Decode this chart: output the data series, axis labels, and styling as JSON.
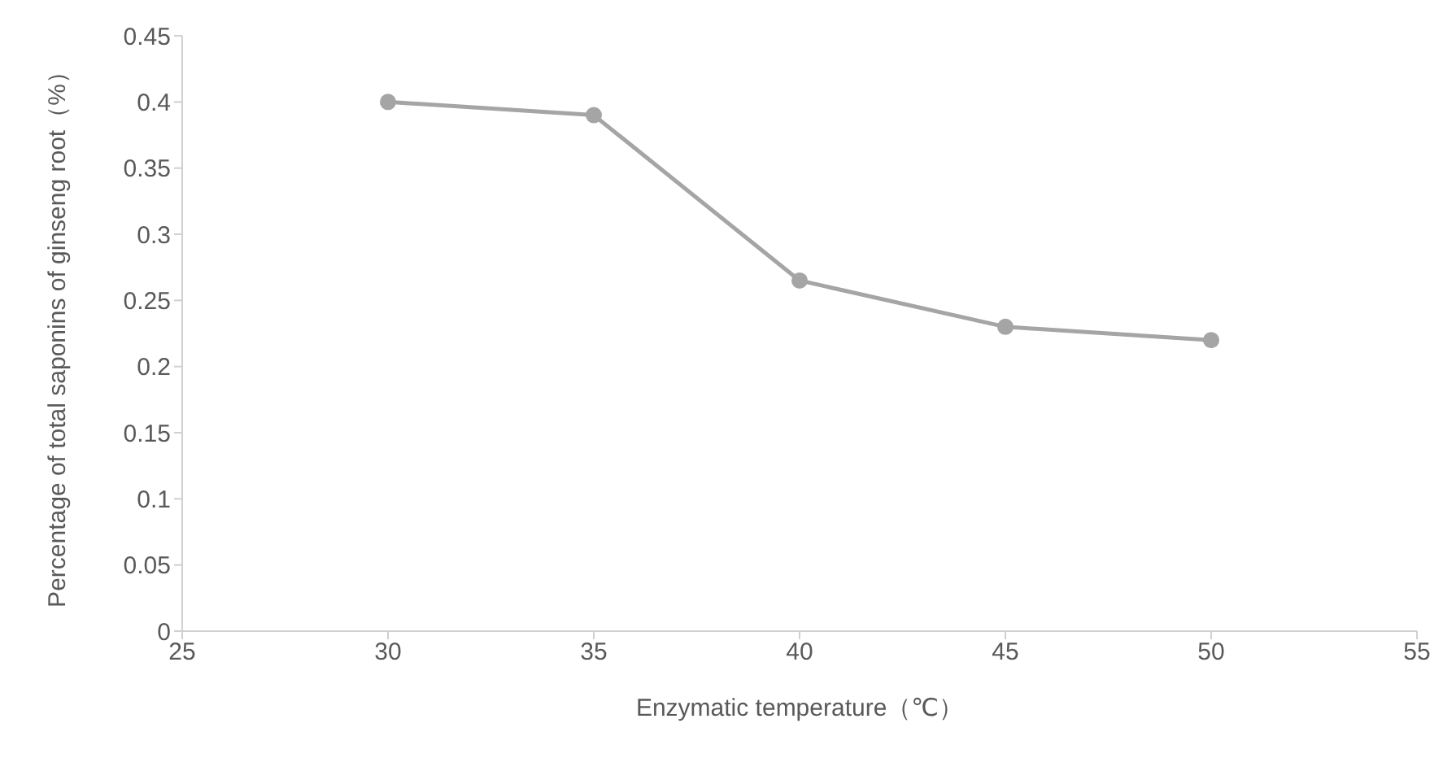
{
  "chart_data": {
    "type": "line",
    "xlabel": "Enzymatic temperature（℃）",
    "ylabel": "Percentage of total saponins of ginseng root（%）",
    "x": [
      30,
      35,
      40,
      45,
      50
    ],
    "series": [
      {
        "color": "#a5a5a5",
        "values": [
          0.4,
          0.39,
          0.265,
          0.23,
          0.22
        ]
      }
    ],
    "xlim": [
      25,
      55
    ],
    "xticks": [
      25,
      30,
      35,
      40,
      45,
      50,
      55
    ],
    "ylim": [
      0,
      0.45
    ],
    "yticks": [
      0,
      0.05,
      0.1,
      0.15,
      0.2,
      0.25,
      0.3,
      0.35,
      0.4,
      0.45
    ],
    "grid": false,
    "legend": false,
    "marker": "circle",
    "line_style": "solid"
  }
}
